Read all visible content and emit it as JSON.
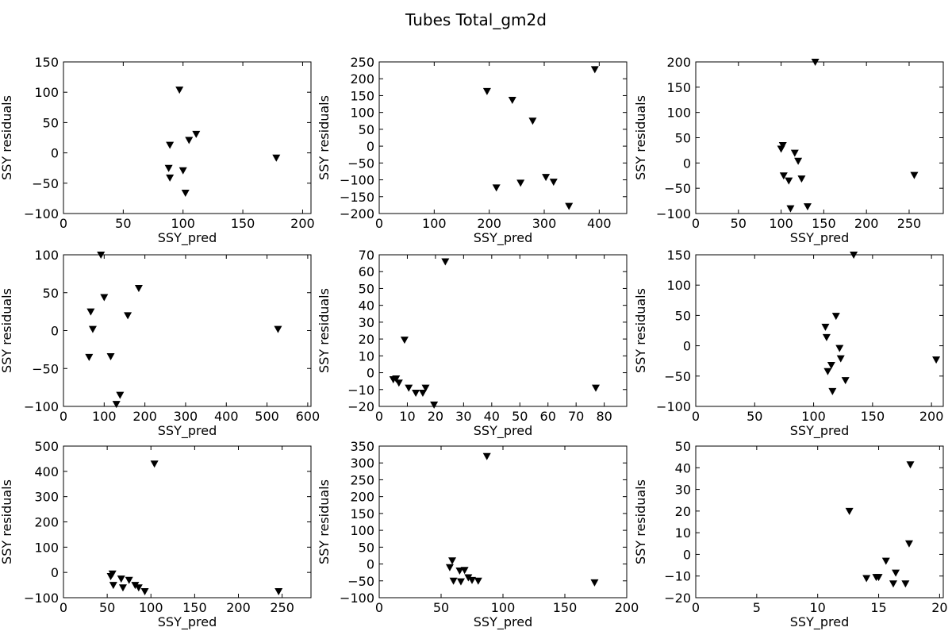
{
  "figure": {
    "title": "Tubes Total_gm2d"
  },
  "chart_data": [
    {
      "type": "scatter",
      "xlabel": "SSY_pred",
      "ylabel": "SSY residuals",
      "xlim": [
        0,
        207
      ],
      "ylim": [
        -100,
        150
      ],
      "xticks": [
        0,
        50,
        100,
        150,
        200
      ],
      "yticks": [
        -100,
        -50,
        0,
        50,
        100,
        150
      ],
      "marker": "triangle-down",
      "color": "#000000",
      "points": [
        {
          "x": 97,
          "y": 104
        },
        {
          "x": 111,
          "y": 31
        },
        {
          "x": 105,
          "y": 21
        },
        {
          "x": 89,
          "y": 13
        },
        {
          "x": 178,
          "y": -8
        },
        {
          "x": 88,
          "y": -25
        },
        {
          "x": 100,
          "y": -29
        },
        {
          "x": 89,
          "y": -41
        },
        {
          "x": 102,
          "y": -66
        }
      ]
    },
    {
      "type": "scatter",
      "xlabel": "SSY_pred",
      "ylabel": "SSY residuals",
      "xlim": [
        0,
        450
      ],
      "ylim": [
        -200,
        250
      ],
      "xticks": [
        0,
        100,
        200,
        300,
        400
      ],
      "yticks": [
        -200,
        -150,
        -100,
        -50,
        0,
        50,
        100,
        150,
        200,
        250
      ],
      "marker": "triangle-down",
      "color": "#000000",
      "points": [
        {
          "x": 392,
          "y": 228
        },
        {
          "x": 196,
          "y": 163
        },
        {
          "x": 242,
          "y": 137
        },
        {
          "x": 279,
          "y": 75
        },
        {
          "x": 303,
          "y": -92
        },
        {
          "x": 317,
          "y": -106
        },
        {
          "x": 257,
          "y": -109
        },
        {
          "x": 213,
          "y": -123
        },
        {
          "x": 345,
          "y": -178
        }
      ]
    },
    {
      "type": "scatter",
      "xlabel": "SSY_pred",
      "ylabel": "SSY residuals",
      "xlim": [
        0,
        290
      ],
      "ylim": [
        -100,
        200
      ],
      "xticks": [
        0,
        50,
        100,
        150,
        200,
        250
      ],
      "yticks": [
        -100,
        -50,
        0,
        50,
        100,
        150,
        200
      ],
      "marker": "triangle-down",
      "color": "#000000",
      "points": [
        {
          "x": 140,
          "y": 200
        },
        {
          "x": 102,
          "y": 35
        },
        {
          "x": 100,
          "y": 28
        },
        {
          "x": 116,
          "y": 20
        },
        {
          "x": 120,
          "y": 4
        },
        {
          "x": 256,
          "y": -24
        },
        {
          "x": 103,
          "y": -25
        },
        {
          "x": 124,
          "y": -31
        },
        {
          "x": 109,
          "y": -35
        },
        {
          "x": 131,
          "y": -86
        },
        {
          "x": 111,
          "y": -90
        }
      ]
    },
    {
      "type": "scatter",
      "xlabel": "SSY_pred",
      "ylabel": "SSY residuals",
      "xlim": [
        0,
        608
      ],
      "ylim": [
        -100,
        100
      ],
      "xticks": [
        0,
        100,
        200,
        300,
        400,
        500,
        600
      ],
      "yticks": [
        -100,
        -50,
        0,
        50,
        100
      ],
      "marker": "triangle-down",
      "color": "#000000",
      "points": [
        {
          "x": 92,
          "y": 100
        },
        {
          "x": 185,
          "y": 56
        },
        {
          "x": 100,
          "y": 44
        },
        {
          "x": 67,
          "y": 25
        },
        {
          "x": 158,
          "y": 20
        },
        {
          "x": 72,
          "y": 2
        },
        {
          "x": 527,
          "y": 2
        },
        {
          "x": 63,
          "y": -35
        },
        {
          "x": 116,
          "y": -34
        },
        {
          "x": 139,
          "y": -85
        },
        {
          "x": 130,
          "y": -97
        }
      ]
    },
    {
      "type": "scatter",
      "xlabel": "SSY_pred",
      "ylabel": "SSY residuals",
      "xlim": [
        0,
        88
      ],
      "ylim": [
        -20,
        70
      ],
      "xticks": [
        0,
        10,
        20,
        30,
        40,
        50,
        60,
        70,
        80
      ],
      "yticks": [
        -20,
        -10,
        0,
        10,
        20,
        30,
        40,
        50,
        60,
        70
      ],
      "marker": "triangle-down",
      "color": "#000000",
      "points": [
        {
          "x": 23.5,
          "y": 66
        },
        {
          "x": 9,
          "y": 19.5
        },
        {
          "x": 5,
          "y": -4
        },
        {
          "x": 6,
          "y": -3.5
        },
        {
          "x": 7,
          "y": -6
        },
        {
          "x": 10.5,
          "y": -9
        },
        {
          "x": 13,
          "y": -12
        },
        {
          "x": 15.5,
          "y": -12
        },
        {
          "x": 16.5,
          "y": -9
        },
        {
          "x": 19.5,
          "y": -19
        },
        {
          "x": 77,
          "y": -9
        }
      ]
    },
    {
      "type": "scatter",
      "xlabel": "SSY_pred",
      "ylabel": "SSY residuals",
      "xlim": [
        0,
        210
      ],
      "ylim": [
        -100,
        150
      ],
      "xticks": [
        0,
        50,
        100,
        150,
        200
      ],
      "yticks": [
        -100,
        -50,
        0,
        50,
        100,
        150
      ],
      "marker": "triangle-down",
      "color": "#000000",
      "points": [
        {
          "x": 134,
          "y": 150
        },
        {
          "x": 119,
          "y": 49
        },
        {
          "x": 110,
          "y": 31
        },
        {
          "x": 111,
          "y": 14
        },
        {
          "x": 122,
          "y": -4
        },
        {
          "x": 123,
          "y": -21
        },
        {
          "x": 204,
          "y": -23
        },
        {
          "x": 115,
          "y": -32
        },
        {
          "x": 112,
          "y": -42
        },
        {
          "x": 127,
          "y": -57
        },
        {
          "x": 116,
          "y": -75
        }
      ]
    },
    {
      "type": "scatter",
      "xlabel": "SSY_pred",
      "ylabel": "SSY residuals",
      "xlim": [
        0,
        283
      ],
      "ylim": [
        -100,
        500
      ],
      "xticks": [
        0,
        50,
        100,
        150,
        200,
        250
      ],
      "yticks": [
        -100,
        0,
        100,
        200,
        300,
        400,
        500
      ],
      "marker": "triangle-down",
      "color": "#000000",
      "points": [
        {
          "x": 104,
          "y": 430
        },
        {
          "x": 56,
          "y": -5
        },
        {
          "x": 54,
          "y": -15
        },
        {
          "x": 66,
          "y": -25
        },
        {
          "x": 75,
          "y": -30
        },
        {
          "x": 57,
          "y": -50
        },
        {
          "x": 82,
          "y": -50
        },
        {
          "x": 68,
          "y": -60
        },
        {
          "x": 86,
          "y": -60
        },
        {
          "x": 93,
          "y": -75
        },
        {
          "x": 246,
          "y": -75
        }
      ]
    },
    {
      "type": "scatter",
      "xlabel": "SSY_pred",
      "ylabel": "SSY residuals",
      "xlim": [
        0,
        200
      ],
      "ylim": [
        -100,
        350
      ],
      "xticks": [
        0,
        50,
        100,
        150,
        200
      ],
      "yticks": [
        -100,
        -50,
        0,
        50,
        100,
        150,
        200,
        250,
        300,
        350
      ],
      "marker": "triangle-down",
      "color": "#000000",
      "points": [
        {
          "x": 87,
          "y": 320
        },
        {
          "x": 59,
          "y": 10
        },
        {
          "x": 57,
          "y": -10
        },
        {
          "x": 65,
          "y": -20
        },
        {
          "x": 69,
          "y": -18
        },
        {
          "x": 72,
          "y": -40
        },
        {
          "x": 75,
          "y": -48
        },
        {
          "x": 80,
          "y": -50
        },
        {
          "x": 60,
          "y": -50
        },
        {
          "x": 66,
          "y": -52
        },
        {
          "x": 174,
          "y": -55
        }
      ]
    },
    {
      "type": "scatter",
      "xlabel": "SSY_pred",
      "ylabel": "SSY residuals",
      "xlim": [
        0,
        20.3
      ],
      "ylim": [
        -20,
        50
      ],
      "xticks": [
        0,
        5,
        10,
        15,
        20
      ],
      "yticks": [
        -20,
        -10,
        0,
        10,
        20,
        30,
        40,
        50
      ],
      "marker": "triangle-down",
      "color": "#000000",
      "points": [
        {
          "x": 17.6,
          "y": 41.5
        },
        {
          "x": 12.6,
          "y": 20
        },
        {
          "x": 17.5,
          "y": 5
        },
        {
          "x": 15.6,
          "y": -3
        },
        {
          "x": 16.4,
          "y": -8.5
        },
        {
          "x": 14.8,
          "y": -10.5
        },
        {
          "x": 15.0,
          "y": -10.5
        },
        {
          "x": 14.0,
          "y": -11
        },
        {
          "x": 16.2,
          "y": -13.5
        },
        {
          "x": 17.2,
          "y": -13.5
        }
      ]
    }
  ]
}
